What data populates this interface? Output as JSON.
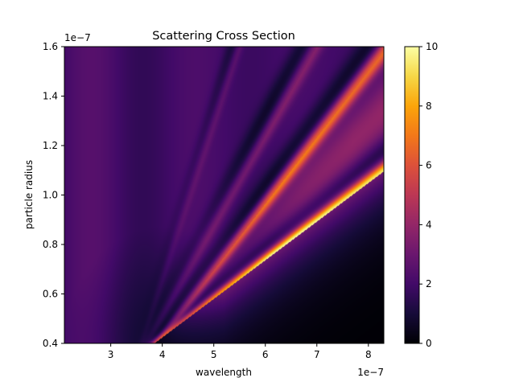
{
  "chart_data": {
    "type": "heatmap",
    "title": "Scattering Cross Section",
    "xlabel": "wavelength",
    "ylabel": "particle radius",
    "x_offset_label": "1e−7",
    "y_offset_label": "1e−7",
    "xlim": [
      2.1,
      8.3
    ],
    "ylim": [
      0.4,
      1.6
    ],
    "x_ticks": [
      3,
      4,
      5,
      6,
      7,
      8
    ],
    "y_ticks": [
      0.4,
      0.6,
      0.8,
      1.0,
      1.2,
      1.4,
      1.6
    ],
    "x_tick_labels": [
      "3",
      "4",
      "5",
      "6",
      "7",
      "8"
    ],
    "y_tick_labels": [
      "0.4",
      "0.6",
      "0.8",
      "1.0",
      "1.2",
      "1.4",
      "1.6"
    ],
    "colorbar": {
      "colormap": "inferno",
      "range": [
        0,
        10
      ],
      "ticks": [
        0,
        2,
        4,
        6,
        8,
        10
      ],
      "tick_labels": [
        "0",
        "2",
        "4",
        "6",
        "8",
        "10"
      ]
    },
    "ridges": [
      {
        "order": 1,
        "peak_value": 9.5,
        "points": [
          [
            3.85,
            0.4
          ],
          [
            8.3,
            1.095
          ]
        ]
      },
      {
        "order": 2,
        "peak_value": 6.5,
        "points": [
          [
            3.9,
            0.4
          ],
          [
            8.3,
            1.58
          ]
        ]
      },
      {
        "order": 3,
        "peak_value": 3.5,
        "points": [
          [
            3.7,
            0.4
          ],
          [
            7.0,
            1.6
          ]
        ]
      },
      {
        "order": 4,
        "peak_value": 2.8,
        "points": [
          [
            3.6,
            0.4
          ],
          [
            5.5,
            1.6
          ]
        ]
      }
    ],
    "background_value": 2.0
  }
}
